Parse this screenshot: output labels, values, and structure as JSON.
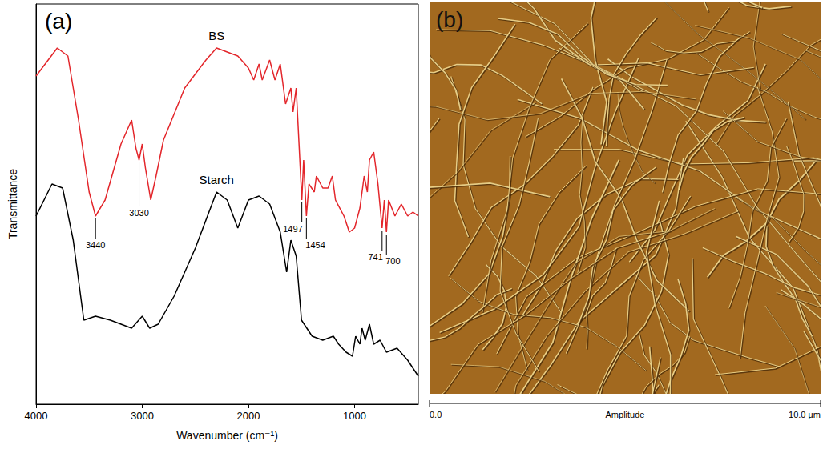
{
  "chart_data": {
    "type": "line",
    "title": "(a)",
    "x_label": "Wavenumber (cm⁻¹)",
    "y_label": "Transmittance",
    "xlim": [
      4000,
      400
    ],
    "xticks": [
      4000,
      3000,
      2000,
      1000
    ],
    "ylim": [
      0,
      100
    ],
    "tick_labels": "x",
    "grid": false,
    "series": [
      {
        "name": "BS",
        "color": "#e3262b",
        "x": [
          4000,
          3800,
          3700,
          3600,
          3500,
          3440,
          3350,
          3200,
          3100,
          3060,
          3030,
          3000,
          2970,
          2920,
          2870,
          2800,
          2600,
          2400,
          2300,
          2200,
          2100,
          2000,
          1950,
          1900,
          1870,
          1800,
          1750,
          1700,
          1650,
          1600,
          1580,
          1550,
          1497,
          1480,
          1454,
          1430,
          1380,
          1360,
          1300,
          1250,
          1210,
          1180,
          1100,
          1050,
          1000,
          950,
          910,
          880,
          860,
          820,
          780,
          741,
          720,
          700,
          680,
          620,
          560,
          500,
          450,
          400
        ],
        "values": [
          82,
          89,
          87,
          71,
          53,
          47,
          51,
          65,
          71,
          64,
          61,
          65,
          59,
          51,
          57,
          66,
          79,
          86,
          89,
          88,
          87,
          84,
          81,
          85,
          81,
          86,
          81,
          85,
          75,
          79,
          73,
          79,
          51,
          61,
          47,
          55,
          53,
          57,
          54,
          54,
          57,
          51,
          47,
          43,
          44,
          49,
          57,
          53,
          61,
          63,
          55,
          44,
          51,
          43,
          51,
          47,
          50,
          47,
          48,
          47
        ]
      },
      {
        "name": "Starch",
        "color": "#000000",
        "x": [
          4000,
          3850,
          3750,
          3650,
          3550,
          3440,
          3300,
          3100,
          3000,
          2930,
          2850,
          2700,
          2500,
          2300,
          2200,
          2100,
          2000,
          1900,
          1800,
          1700,
          1640,
          1600,
          1550,
          1500,
          1450,
          1400,
          1300,
          1200,
          1150,
          1080,
          1020,
          990,
          950,
          930,
          900,
          860,
          820,
          760,
          700,
          600,
          500,
          400
        ],
        "values": [
          47,
          55,
          54,
          41,
          21,
          22,
          21,
          19,
          22,
          19,
          20,
          27,
          39,
          53,
          51,
          44,
          51,
          52,
          50,
          43,
          33,
          41,
          37,
          21,
          19,
          17,
          16,
          17,
          15,
          13,
          12,
          17,
          15,
          19,
          16,
          20,
          15,
          16,
          13,
          14,
          11,
          7
        ]
      }
    ],
    "annotations": [
      {
        "series": "BS",
        "x": 3440,
        "text": "3440"
      },
      {
        "series": "BS",
        "x": 3030,
        "text": "3030"
      },
      {
        "series": "BS",
        "x": 1497,
        "text": "1497"
      },
      {
        "series": "BS",
        "x": 1454,
        "text": "1454"
      },
      {
        "series": "BS",
        "x": 741,
        "text": "741"
      },
      {
        "series": "BS",
        "x": 700,
        "text": "700"
      }
    ]
  },
  "image_panel": {
    "label": "(b)",
    "scale_bar": {
      "start": "0.0",
      "title": "Amplitude",
      "end": "10.0 µm"
    }
  }
}
